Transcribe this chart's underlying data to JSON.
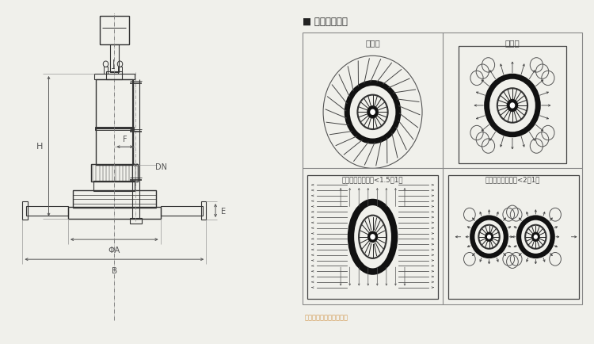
{
  "bg_color": "#f0f0eb",
  "line_color": "#333333",
  "dim_color": "#555555",
  "title_text": "■ 推荐布置選型",
  "panel_titles": [
    "圓形池",
    "方形池",
    "長方形池（長：寬<1.5：1）",
    "長方形池（長：寬<2：1）"
  ],
  "watermark": "东菞市正玚机械有限公司",
  "dim_labels": [
    "F",
    "DN",
    "H",
    "ΦA",
    "B",
    "E"
  ]
}
